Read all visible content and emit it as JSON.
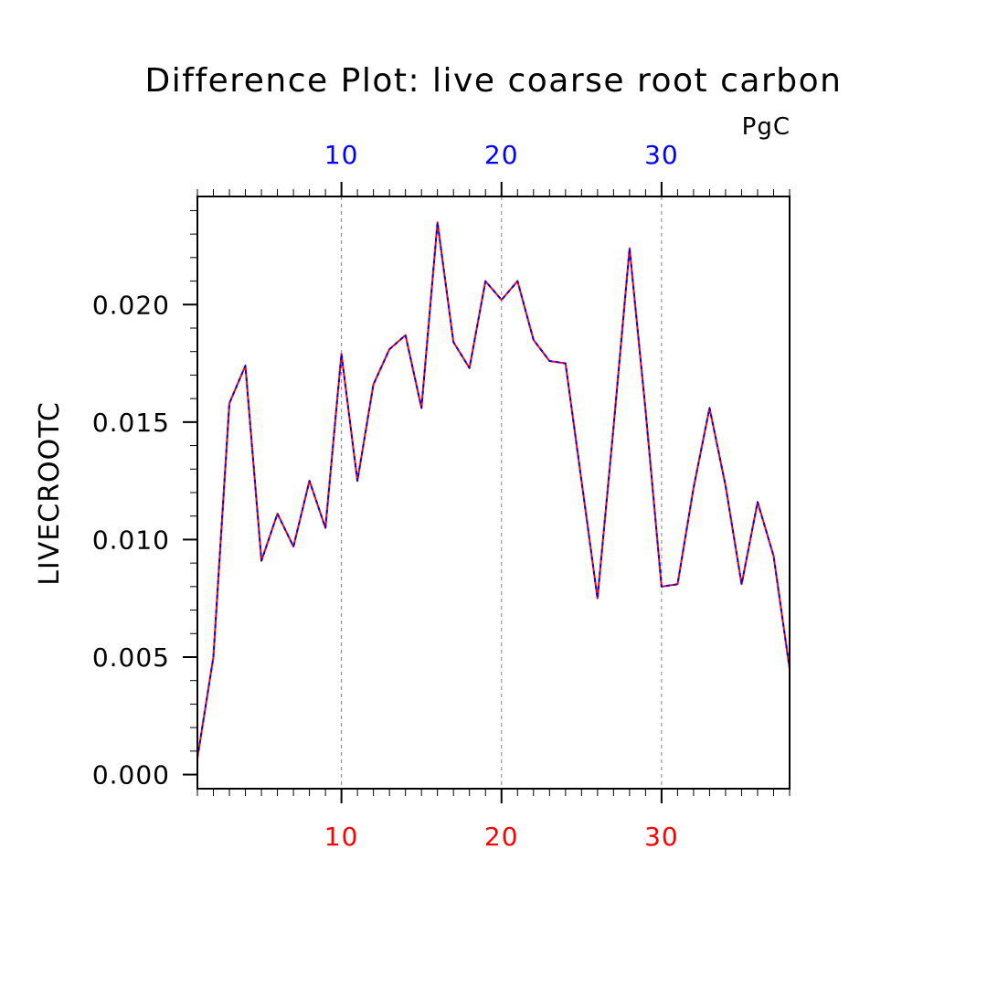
{
  "chart_data": {
    "type": "line",
    "title": "Difference Plot: live coarse root carbon",
    "units": "PgC",
    "ylabel": "LIVECROOTC",
    "xlim": [
      1,
      38
    ],
    "ylim": [
      -0.0006,
      0.0246
    ],
    "y_ticks": [
      "0.000",
      "0.005",
      "0.010",
      "0.015",
      "0.020"
    ],
    "y_tick_values": [
      0.0,
      0.005,
      0.01,
      0.015,
      0.02
    ],
    "x_ticks_bottom": [
      "10",
      "20",
      "30"
    ],
    "x_ticks_top": [
      "10",
      "20",
      "30"
    ],
    "x_tick_values": [
      10,
      20,
      30
    ],
    "grid": "dashed vertical at major x ticks",
    "x": [
      1,
      2,
      3,
      4,
      5,
      6,
      7,
      8,
      9,
      10,
      11,
      12,
      13,
      14,
      15,
      16,
      17,
      18,
      19,
      20,
      21,
      22,
      23,
      24,
      25,
      26,
      27,
      28,
      29,
      30,
      31,
      32,
      33,
      34,
      35,
      36,
      37,
      38
    ],
    "series": [
      {
        "color": "#ff0000",
        "values": [
          0.0007,
          0.005,
          0.0158,
          0.0174,
          0.0091,
          0.0111,
          0.0097,
          0.0125,
          0.0105,
          0.0179,
          0.0125,
          0.0166,
          0.0181,
          0.0187,
          0.0156,
          0.0235,
          0.0184,
          0.0173,
          0.021,
          0.0202,
          0.021,
          0.0185,
          0.0176,
          0.0175,
          0.0125,
          0.0075,
          0.0148,
          0.0224,
          0.0155,
          0.008,
          0.0081,
          0.0122,
          0.0156,
          0.0123,
          0.0081,
          0.0116,
          0.0093,
          0.0045
        ]
      },
      {
        "color": "#0000ff",
        "values": [
          0.0007,
          0.005,
          0.0158,
          0.0174,
          0.0091,
          0.0111,
          0.0097,
          0.0125,
          0.0105,
          0.0179,
          0.0125,
          0.0166,
          0.0181,
          0.0187,
          0.0156,
          0.0235,
          0.0184,
          0.0173,
          0.021,
          0.0202,
          0.021,
          0.0185,
          0.0176,
          0.0175,
          0.0125,
          0.0075,
          0.0148,
          0.0224,
          0.0155,
          0.008,
          0.0081,
          0.0122,
          0.0156,
          0.0123,
          0.0081,
          0.0116,
          0.0093,
          0.0045
        ]
      }
    ],
    "colors": {
      "bottom_axis": "#ff0000",
      "top_axis": "#0000ff",
      "frame": "#000000",
      "grid": "#808080"
    }
  }
}
